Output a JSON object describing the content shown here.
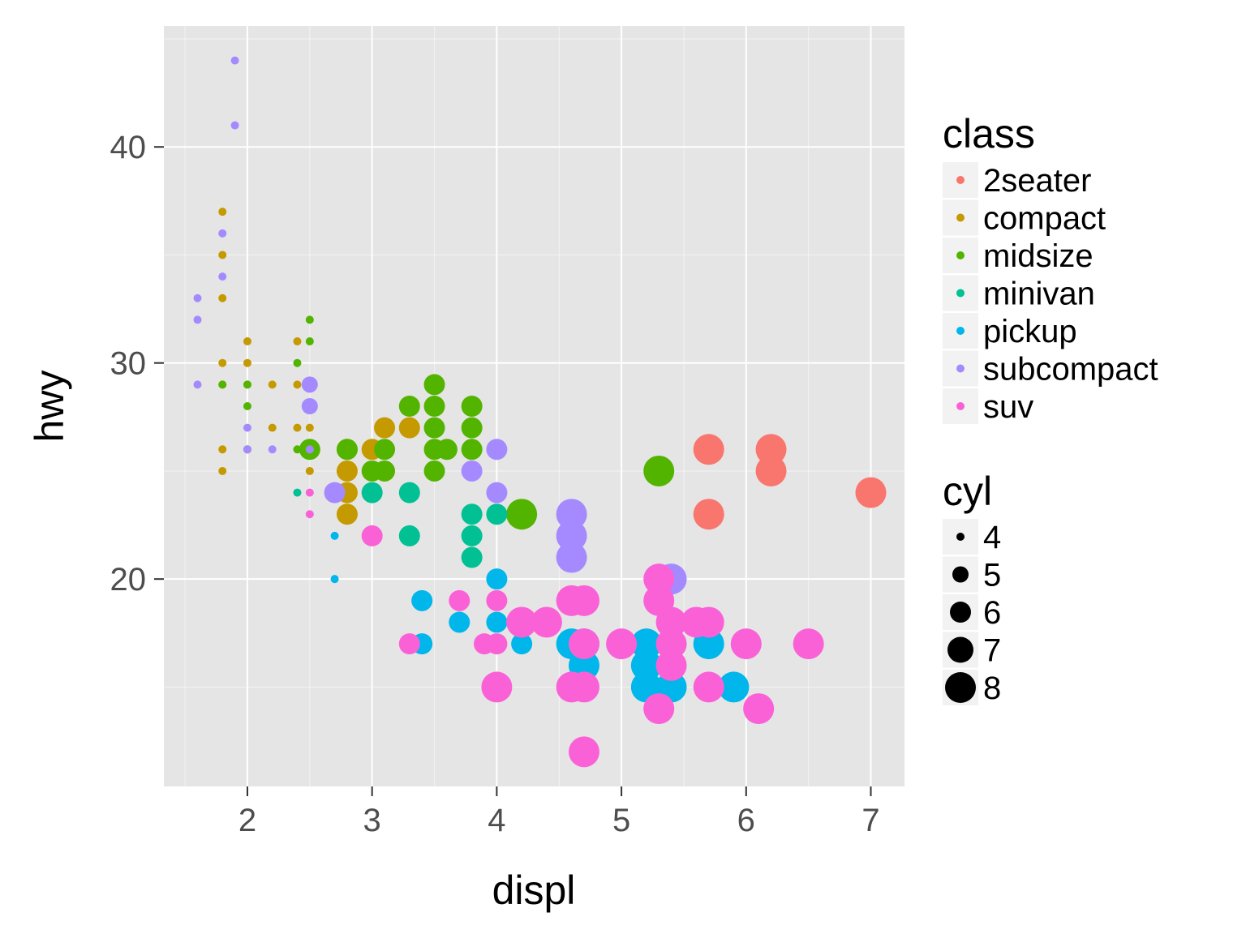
{
  "chart_data": {
    "type": "scatter",
    "title": "",
    "xlabel": "displ",
    "ylabel": "hwy",
    "xlim": [
      1.33,
      7.27
    ],
    "ylim": [
      10.4,
      45.6
    ],
    "xticks": [
      2,
      3,
      4,
      5,
      6,
      7
    ],
    "yticks": [
      20,
      30,
      40
    ],
    "grid": true,
    "legend_position": "right",
    "colors": {
      "panel": "#e5e5e5",
      "grid": "#ffffff",
      "tick": "#333333"
    },
    "size_scale": {
      "4": 5,
      "5": 10,
      "6": 13,
      "7": 16,
      "8": 19
    },
    "legends": {
      "color": {
        "title": "class",
        "entries": [
          {
            "label": "2seater",
            "color": "#F8766D"
          },
          {
            "label": "compact",
            "color": "#C49A00"
          },
          {
            "label": "midsize",
            "color": "#53B400"
          },
          {
            "label": "minivan",
            "color": "#00C094"
          },
          {
            "label": "pickup",
            "color": "#00B6EB"
          },
          {
            "label": "subcompact",
            "color": "#A58AFF"
          },
          {
            "label": "suv",
            "color": "#FB61D7"
          }
        ]
      },
      "size": {
        "title": "cyl",
        "entries": [
          {
            "label": "4",
            "value": 4
          },
          {
            "label": "5",
            "value": 5
          },
          {
            "label": "6",
            "value": 6
          },
          {
            "label": "7",
            "value": 7
          },
          {
            "label": "8",
            "value": 8
          }
        ]
      }
    },
    "series": [
      {
        "class": "2seater",
        "points": [
          [
            5.7,
            26,
            8
          ],
          [
            5.7,
            23,
            8
          ],
          [
            6.2,
            26,
            8
          ],
          [
            6.2,
            25,
            8
          ],
          [
            7.0,
            24,
            8
          ]
        ]
      },
      {
        "class": "compact",
        "points": [
          [
            1.8,
            37,
            4
          ],
          [
            1.8,
            35,
            4
          ],
          [
            1.8,
            33,
            4
          ],
          [
            1.8,
            30,
            4
          ],
          [
            1.8,
            29,
            4
          ],
          [
            1.8,
            26,
            4
          ],
          [
            1.8,
            25,
            4
          ],
          [
            2.0,
            31,
            4
          ],
          [
            2.0,
            30,
            4
          ],
          [
            2.0,
            29,
            4
          ],
          [
            2.0,
            26,
            4
          ],
          [
            2.2,
            29,
            4
          ],
          [
            2.2,
            27,
            4
          ],
          [
            2.4,
            31,
            4
          ],
          [
            2.4,
            29,
            4
          ],
          [
            2.4,
            27,
            4
          ],
          [
            2.5,
            27,
            4
          ],
          [
            2.5,
            25,
            4
          ],
          [
            2.8,
            26,
            6
          ],
          [
            2.8,
            25,
            6
          ],
          [
            2.8,
            24,
            6
          ],
          [
            2.8,
            23,
            6
          ],
          [
            3.0,
            26,
            6
          ],
          [
            3.1,
            27,
            6
          ],
          [
            3.3,
            27,
            6
          ]
        ]
      },
      {
        "class": "midsize",
        "points": [
          [
            1.8,
            29,
            4
          ],
          [
            2.0,
            29,
            4
          ],
          [
            2.0,
            28,
            4
          ],
          [
            2.0,
            26,
            4
          ],
          [
            2.4,
            30,
            4
          ],
          [
            2.4,
            26,
            4
          ],
          [
            2.5,
            32,
            4
          ],
          [
            2.5,
            31,
            4
          ],
          [
            2.5,
            26,
            6
          ],
          [
            2.8,
            26,
            6
          ],
          [
            3.0,
            25,
            6
          ],
          [
            3.1,
            26,
            6
          ],
          [
            3.1,
            25,
            6
          ],
          [
            3.3,
            28,
            6
          ],
          [
            3.5,
            29,
            6
          ],
          [
            3.5,
            28,
            6
          ],
          [
            3.5,
            27,
            6
          ],
          [
            3.5,
            26,
            6
          ],
          [
            3.5,
            25,
            6
          ],
          [
            3.6,
            26,
            6
          ],
          [
            3.8,
            28,
            6
          ],
          [
            3.8,
            27,
            6
          ],
          [
            3.8,
            26,
            6
          ],
          [
            4.2,
            23,
            8
          ],
          [
            5.3,
            25,
            8
          ]
        ]
      },
      {
        "class": "minivan",
        "points": [
          [
            2.4,
            24,
            4
          ],
          [
            3.0,
            24,
            6
          ],
          [
            3.3,
            24,
            6
          ],
          [
            3.3,
            22,
            6
          ],
          [
            3.8,
            23,
            6
          ],
          [
            3.8,
            22,
            6
          ],
          [
            3.8,
            21,
            6
          ],
          [
            4.0,
            23,
            6
          ]
        ]
      },
      {
        "class": "pickup",
        "points": [
          [
            2.7,
            22,
            4
          ],
          [
            2.7,
            20,
            4
          ],
          [
            3.4,
            19,
            6
          ],
          [
            3.4,
            17,
            6
          ],
          [
            3.7,
            18,
            6
          ],
          [
            4.0,
            20,
            6
          ],
          [
            4.0,
            18,
            6
          ],
          [
            4.2,
            17,
            6
          ],
          [
            4.6,
            17,
            8
          ],
          [
            4.7,
            17,
            8
          ],
          [
            4.7,
            16,
            8
          ],
          [
            5.2,
            17,
            8
          ],
          [
            5.2,
            16,
            8
          ],
          [
            5.2,
            15,
            8
          ],
          [
            5.4,
            15,
            8
          ],
          [
            5.7,
            17,
            8
          ],
          [
            5.9,
            15,
            8
          ]
        ]
      },
      {
        "class": "subcompact",
        "points": [
          [
            1.6,
            33,
            4
          ],
          [
            1.6,
            32,
            4
          ],
          [
            1.6,
            29,
            4
          ],
          [
            1.8,
            36,
            4
          ],
          [
            1.8,
            34,
            4
          ],
          [
            1.9,
            44,
            4
          ],
          [
            1.9,
            41,
            4
          ],
          [
            2.0,
            27,
            4
          ],
          [
            2.0,
            26,
            4
          ],
          [
            2.2,
            26,
            4
          ],
          [
            2.5,
            29,
            5
          ],
          [
            2.5,
            28,
            5
          ],
          [
            2.5,
            26,
            4
          ],
          [
            2.7,
            24,
            6
          ],
          [
            3.8,
            25,
            6
          ],
          [
            4.0,
            26,
            6
          ],
          [
            4.0,
            24,
            6
          ],
          [
            4.6,
            23,
            8
          ],
          [
            4.6,
            22,
            8
          ],
          [
            4.6,
            21,
            8
          ],
          [
            5.4,
            20,
            8
          ]
        ]
      },
      {
        "class": "suv",
        "points": [
          [
            2.5,
            24,
            4
          ],
          [
            2.5,
            23,
            4
          ],
          [
            3.0,
            22,
            6
          ],
          [
            3.3,
            17,
            6
          ],
          [
            3.7,
            19,
            6
          ],
          [
            3.9,
            17,
            6
          ],
          [
            4.0,
            19,
            6
          ],
          [
            4.0,
            17,
            6
          ],
          [
            4.0,
            15,
            8
          ],
          [
            4.2,
            18,
            8
          ],
          [
            4.4,
            18,
            8
          ],
          [
            4.6,
            19,
            8
          ],
          [
            4.6,
            15,
            8
          ],
          [
            4.7,
            19,
            8
          ],
          [
            4.7,
            17,
            8
          ],
          [
            4.7,
            15,
            8
          ],
          [
            4.7,
            12,
            8
          ],
          [
            5.0,
            17,
            8
          ],
          [
            5.3,
            20,
            8
          ],
          [
            5.3,
            19,
            8
          ],
          [
            5.3,
            14,
            8
          ],
          [
            5.4,
            18,
            8
          ],
          [
            5.4,
            17,
            8
          ],
          [
            5.4,
            16,
            8
          ],
          [
            5.6,
            18,
            8
          ],
          [
            5.7,
            18,
            8
          ],
          [
            5.7,
            15,
            8
          ],
          [
            6.0,
            17,
            8
          ],
          [
            6.1,
            14,
            8
          ],
          [
            6.5,
            17,
            8
          ]
        ]
      }
    ]
  }
}
